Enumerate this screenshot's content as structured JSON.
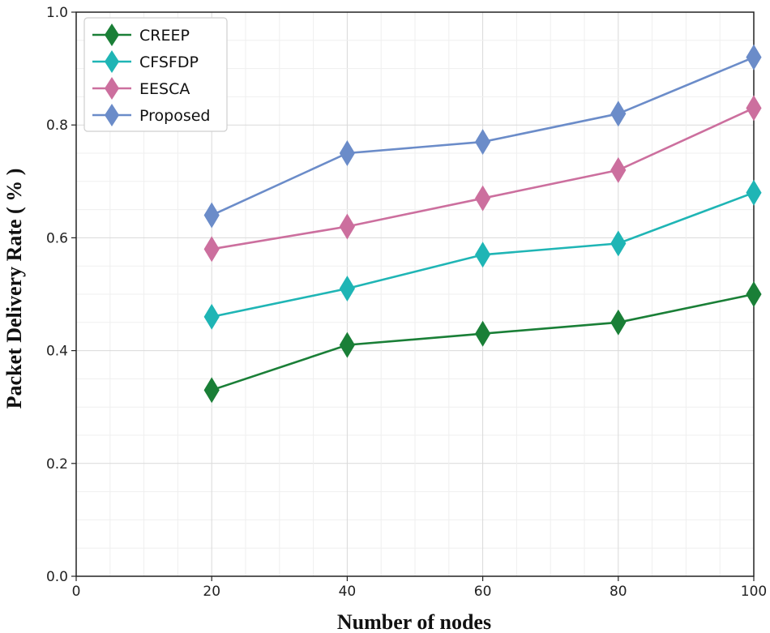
{
  "chart_data": {
    "type": "line",
    "title": "",
    "xlabel": "Number of nodes",
    "ylabel": "Packet Delivery Rate ( % )",
    "xlim": [
      0,
      100
    ],
    "ylim": [
      0.0,
      1.0
    ],
    "x_ticks": [
      "0",
      "20",
      "40",
      "60",
      "80",
      "100"
    ],
    "y_ticks": [
      "0.0",
      "0.2",
      "0.4",
      "0.6",
      "0.8",
      "1.0"
    ],
    "grid": true,
    "legend_position": "top-left",
    "x": [
      20,
      40,
      60,
      80,
      100
    ],
    "series": [
      {
        "name": "CREEP",
        "color": "#1a7f37",
        "values": [
          0.33,
          0.41,
          0.43,
          0.45,
          0.5
        ]
      },
      {
        "name": "CFSFDP",
        "color": "#1fb5b5",
        "values": [
          0.46,
          0.51,
          0.57,
          0.59,
          0.68
        ]
      },
      {
        "name": "EESCA",
        "color": "#cc6f9e",
        "values": [
          0.58,
          0.62,
          0.67,
          0.72,
          0.83
        ]
      },
      {
        "name": "Proposed",
        "color": "#6b8cc9",
        "values": [
          0.64,
          0.75,
          0.77,
          0.82,
          0.92
        ]
      }
    ]
  }
}
